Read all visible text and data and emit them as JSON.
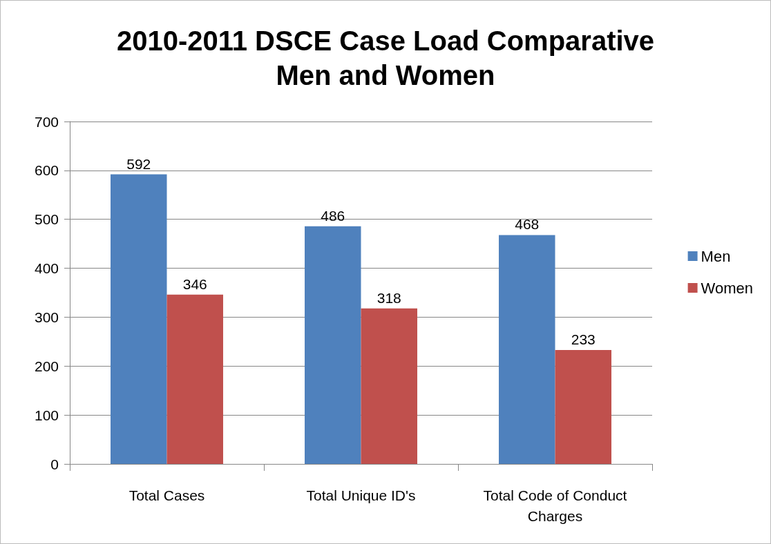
{
  "chart_data": {
    "type": "bar",
    "title": "2010-2011 DSCE Case Load Comparative\nMen and Women",
    "categories": [
      "Total Cases",
      "Total Unique ID's",
      "Total Code of Conduct\nCharges"
    ],
    "series": [
      {
        "name": "Men",
        "color": "#4f81bd",
        "values": [
          592,
          486,
          468
        ]
      },
      {
        "name": "Women",
        "color": "#c0504d",
        "values": [
          346,
          318,
          233
        ]
      }
    ],
    "ylim": [
      0,
      700
    ],
    "yticks": [
      0,
      100,
      200,
      300,
      400,
      500,
      600,
      700
    ],
    "grid": "y",
    "legend": "right",
    "data_labels": true
  }
}
